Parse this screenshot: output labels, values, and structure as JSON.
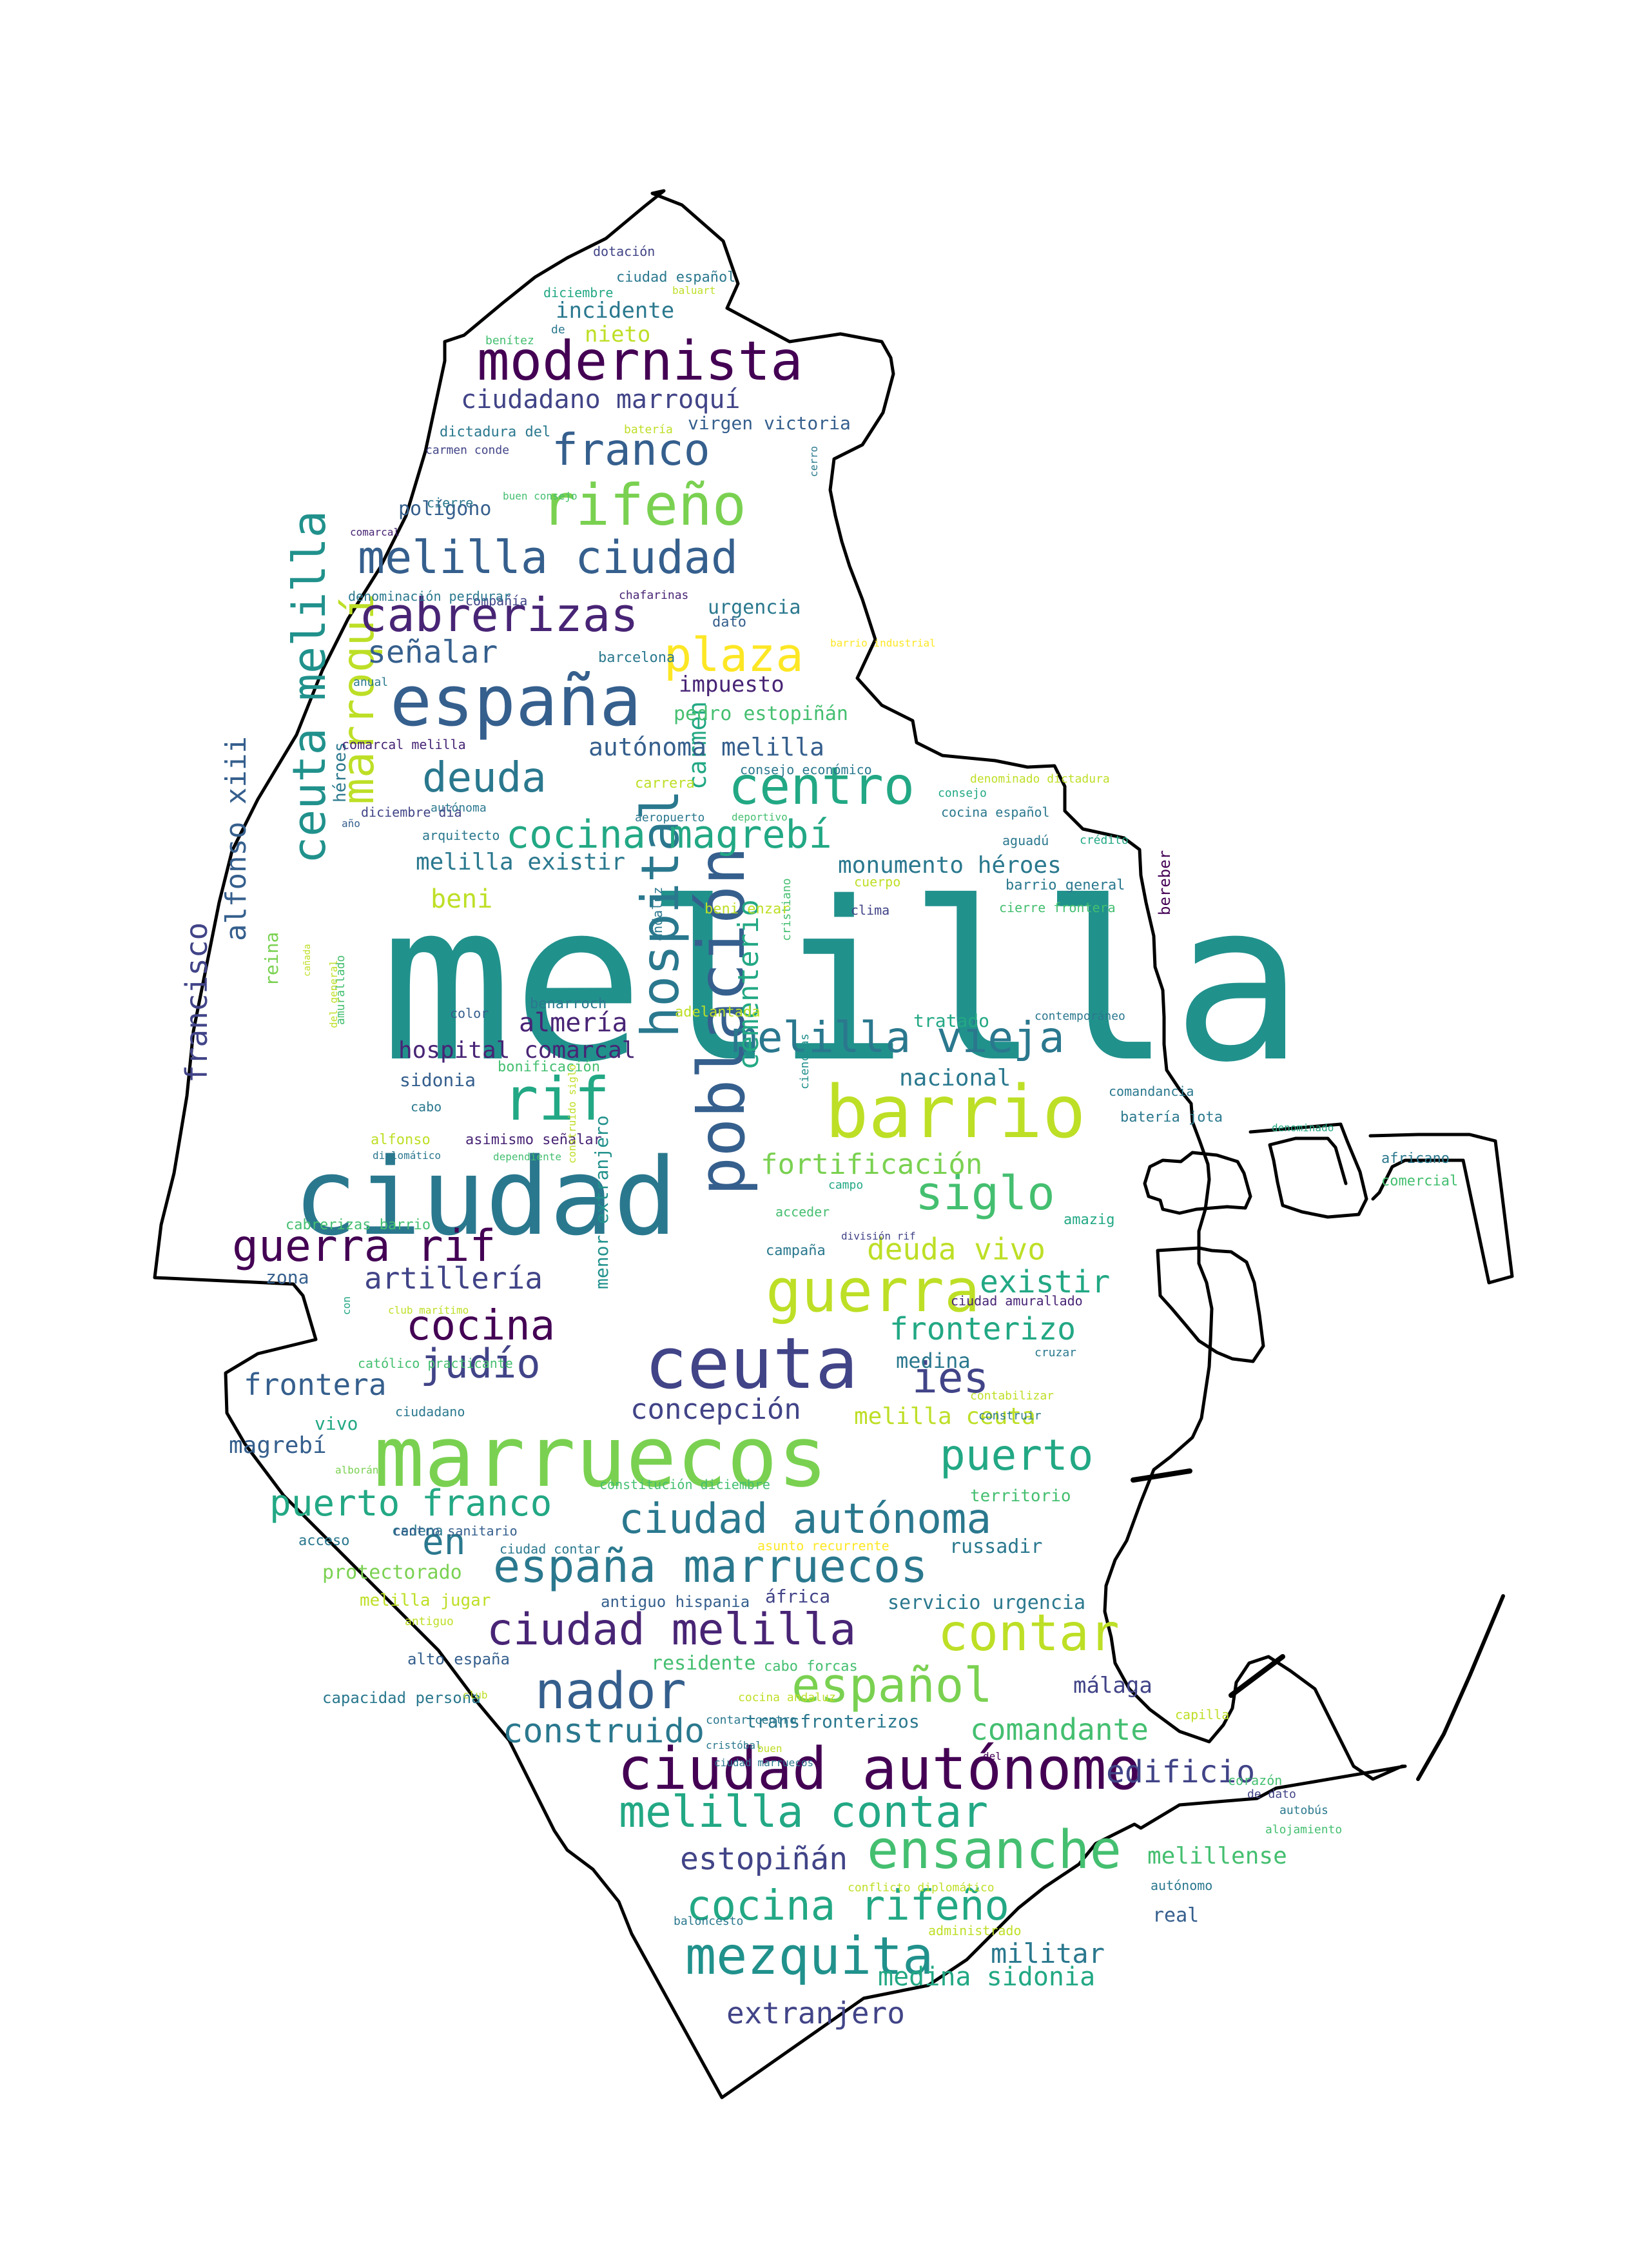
{
  "cloud": {
    "palette": [
      "#440154",
      "#482475",
      "#414487",
      "#355f8d",
      "#2a788e",
      "#21918c",
      "#22a884",
      "#44bf70",
      "#7ad151",
      "#bddf26",
      "#fde725"
    ],
    "words": [
      {
        "t": "melilla",
        "c": "#21918c"
      },
      {
        "t": "ciudad",
        "c": "#2a788e"
      },
      {
        "t": "marruecos",
        "c": "#7ad151"
      },
      {
        "t": "ceuta",
        "c": "#414487"
      },
      {
        "t": "barrio",
        "c": "#bddf26"
      },
      {
        "t": "españa",
        "c": "#355f8d"
      },
      {
        "t": "ciudad autónomo",
        "c": "#440154"
      },
      {
        "t": "población",
        "c": "#355f8d"
      },
      {
        "t": "hospital",
        "c": "#2a788e"
      },
      {
        "t": "guerra",
        "c": "#bddf26"
      },
      {
        "t": "rif",
        "c": "#22a884"
      },
      {
        "t": "marroquí",
        "c": "#bddf26"
      },
      {
        "t": "ceuta melilla",
        "c": "#21918c"
      },
      {
        "t": "rifeño",
        "c": "#7ad151"
      },
      {
        "t": "modernista",
        "c": "#440154"
      },
      {
        "t": "melilla ciudad",
        "c": "#355f8d"
      },
      {
        "t": "cabrerizas",
        "c": "#482475"
      },
      {
        "t": "melilla vieja",
        "c": "#2a788e"
      },
      {
        "t": "ensanche",
        "c": "#44bf70"
      },
      {
        "t": "mezquita",
        "c": "#21918c"
      },
      {
        "t": "contar",
        "c": "#bddf26"
      },
      {
        "t": "nador",
        "c": "#355f8d"
      },
      {
        "t": "español",
        "c": "#7ad151"
      },
      {
        "t": "españa marruecos",
        "c": "#2a788e"
      },
      {
        "t": "ciudad melilla",
        "c": "#482475"
      },
      {
        "t": "ciudad autónoma",
        "c": "#2a788e"
      },
      {
        "t": "melilla contar",
        "c": "#22a884"
      },
      {
        "t": "cocina rifeño",
        "c": "#22a884"
      },
      {
        "t": "guerra rif",
        "c": "#440154"
      },
      {
        "t": "siglo",
        "c": "#44bf70"
      },
      {
        "t": "centro",
        "c": "#22a884"
      },
      {
        "t": "plaza",
        "c": "#fde725"
      },
      {
        "t": "franco",
        "c": "#355f8d"
      },
      {
        "t": "cocina magrebí",
        "c": "#22a884"
      },
      {
        "t": "deuda",
        "c": "#2a788e"
      },
      {
        "t": "cocina",
        "c": "#440154"
      },
      {
        "t": "judío",
        "c": "#414487"
      },
      {
        "t": "puerto",
        "c": "#22a884"
      },
      {
        "t": "puerto franco",
        "c": "#22a884"
      },
      {
        "t": "ies",
        "c": "#414487"
      },
      {
        "t": "en",
        "c": "#2a788e"
      },
      {
        "t": "construido",
        "c": "#2a788e"
      },
      {
        "t": "edificio",
        "c": "#414487"
      },
      {
        "t": "comandante",
        "c": "#44bf70"
      },
      {
        "t": "estopiñán",
        "c": "#414487"
      },
      {
        "t": "militar",
        "c": "#2a788e"
      },
      {
        "t": "medina sidonia",
        "c": "#22a884"
      },
      {
        "t": "extranjero",
        "c": "#414487"
      },
      {
        "t": "señalar",
        "c": "#355f8d"
      },
      {
        "t": "cementerio",
        "c": "#22a884"
      },
      {
        "t": "fortificación",
        "c": "#7ad151"
      },
      {
        "t": "deuda vivo",
        "c": "#bddf26"
      },
      {
        "t": "existir",
        "c": "#22a884"
      },
      {
        "t": "fronterizo",
        "c": "#22a884"
      },
      {
        "t": "artillería",
        "c": "#414487"
      },
      {
        "t": "francisco",
        "c": "#414487"
      },
      {
        "t": "alfonso xiii",
        "c": "#355f8d"
      },
      {
        "t": "carmen",
        "c": "#22a884"
      },
      {
        "t": "frontera",
        "c": "#355f8d"
      },
      {
        "t": "concepción",
        "c": "#414487"
      },
      {
        "t": "hospital comarcal",
        "c": "#482475"
      },
      {
        "t": "almería",
        "c": "#482475"
      },
      {
        "t": "nacional",
        "c": "#2a788e"
      },
      {
        "t": "ciudadano marroquí",
        "c": "#414487"
      },
      {
        "t": "autónoma melilla",
        "c": "#355f8d"
      },
      {
        "t": "monumento héroes",
        "c": "#2a788e"
      },
      {
        "t": "melilla existir",
        "c": "#2a788e"
      },
      {
        "t": "beni",
        "c": "#bddf26"
      },
      {
        "t": "magrebí",
        "c": "#355f8d"
      },
      {
        "t": "melilla ceuta",
        "c": "#bddf26"
      },
      {
        "t": "medina",
        "c": "#2a788e"
      },
      {
        "t": "málaga",
        "c": "#414487"
      },
      {
        "t": "melillense",
        "c": "#44bf70"
      },
      {
        "t": "real",
        "c": "#355f8d"
      },
      {
        "t": "impuesto",
        "c": "#482475"
      },
      {
        "t": "pedro estopiñán",
        "c": "#44bf70"
      },
      {
        "t": "incidente",
        "c": "#2a788e"
      },
      {
        "t": "nieto",
        "c": "#bddf26"
      },
      {
        "t": "polígono",
        "c": "#355f8d"
      },
      {
        "t": "urgencia",
        "c": "#2a788e"
      },
      {
        "t": "protectorado",
        "c": "#7ad151"
      },
      {
        "t": "servicio urgencia",
        "c": "#2a788e"
      },
      {
        "t": "russadir",
        "c": "#2a788e"
      },
      {
        "t": "áfrica",
        "c": "#414487"
      },
      {
        "t": "residente",
        "c": "#44bf70"
      },
      {
        "t": "transfronterizos",
        "c": "#2a788e"
      },
      {
        "t": "tratado",
        "c": "#22a884"
      },
      {
        "t": "sidonia",
        "c": "#355f8d"
      },
      {
        "t": "zona",
        "c": "#355f8d"
      },
      {
        "t": "vivo",
        "c": "#22a884"
      },
      {
        "t": "reina",
        "c": "#7ad151"
      },
      {
        "t": "menor extranjero",
        "c": "#21918c"
      },
      {
        "t": "virgen victoria",
        "c": "#355f8d"
      },
      {
        "t": "héroes",
        "c": "#2a788e"
      },
      {
        "t": "melilla jugar",
        "c": "#bddf26"
      },
      {
        "t": "antiguo hispania",
        "c": "#355f8d"
      },
      {
        "t": "cabo forcas",
        "c": "#44bf70"
      },
      {
        "t": "alto españa",
        "c": "#355f8d"
      },
      {
        "t": "capacidad persona",
        "c": "#2a788e"
      },
      {
        "t": "cadena",
        "c": "#2a788e"
      },
      {
        "t": "acceso",
        "c": "#2a788e"
      },
      {
        "t": "centro sanitario",
        "c": "#355f8d"
      },
      {
        "t": "ciudad contar",
        "c": "#2a788e"
      },
      {
        "t": "asunto recurrente",
        "c": "#fde725"
      },
      {
        "t": "territorio",
        "c": "#44bf70"
      },
      {
        "t": "constitución diciembre",
        "c": "#44bf70"
      },
      {
        "t": "contabilizar",
        "c": "#bddf26"
      },
      {
        "t": "construir",
        "c": "#2a788e"
      },
      {
        "t": "cruzar",
        "c": "#2a788e"
      },
      {
        "t": "ciudad amurallado",
        "c": "#482475"
      },
      {
        "t": "amazig",
        "c": "#22a884"
      },
      {
        "t": "campaña",
        "c": "#2a788e"
      },
      {
        "t": "acceder",
        "c": "#44bf70"
      },
      {
        "t": "campo",
        "c": "#22a884"
      },
      {
        "t": "ciencias",
        "c": "#21918c"
      },
      {
        "t": "bonificación",
        "c": "#44bf70"
      },
      {
        "t": "adelantada",
        "c": "#bddf26"
      },
      {
        "t": "asimismo señalar",
        "c": "#482475"
      },
      {
        "t": "alfonso",
        "c": "#bddf26"
      },
      {
        "t": "diplomático",
        "c": "#2a788e"
      },
      {
        "t": "dependiente",
        "c": "#44bf70"
      },
      {
        "t": "cabrerizas barrio",
        "c": "#44bf70"
      },
      {
        "t": "cabo",
        "c": "#2a788e"
      },
      {
        "t": "color",
        "c": "#355f8d"
      },
      {
        "t": "amurallado",
        "c": "#44bf70"
      },
      {
        "t": "del general",
        "c": "#bddf26"
      },
      {
        "t": "cañada",
        "c": "#bddf26"
      },
      {
        "t": "benarroch",
        "c": "#2a788e"
      },
      {
        "t": "andaluz",
        "c": "#2a788e"
      },
      {
        "t": "cristiano",
        "c": "#44bf70"
      },
      {
        "t": "clima",
        "c": "#414487"
      },
      {
        "t": "cierre frontera",
        "c": "#44bf70"
      },
      {
        "t": "barrio general",
        "c": "#2a788e"
      },
      {
        "t": "bereber",
        "c": "#440154"
      },
      {
        "t": "contemporáneo",
        "c": "#2a788e"
      },
      {
        "t": "comandancia",
        "c": "#2a788e"
      },
      {
        "t": "batería jota",
        "c": "#2a788e"
      },
      {
        "t": "denominado",
        "c": "#22a884"
      },
      {
        "t": "africano",
        "c": "#2a788e"
      },
      {
        "t": "comercial",
        "c": "#44bf70"
      },
      {
        "t": "beni enzar",
        "c": "#bddf26"
      },
      {
        "t": "cuerpo",
        "c": "#bddf26"
      },
      {
        "t": "crédito",
        "c": "#22a884"
      },
      {
        "t": "aguadú",
        "c": "#2a788e"
      },
      {
        "t": "cocina español",
        "c": "#2a788e"
      },
      {
        "t": "consejo",
        "c": "#22a884"
      },
      {
        "t": "denominado dictadura",
        "c": "#bddf26"
      },
      {
        "t": "deportivo",
        "c": "#44bf70"
      },
      {
        "t": "aeropuerto",
        "c": "#2a788e"
      },
      {
        "t": "carrera",
        "c": "#bddf26"
      },
      {
        "t": "consejo económico",
        "c": "#2a788e"
      },
      {
        "t": "autónoma",
        "c": "#2a788e"
      },
      {
        "t": "diciembre día",
        "c": "#414487"
      },
      {
        "t": "año",
        "c": "#355f8d"
      },
      {
        "t": "arquitecto",
        "c": "#2a788e"
      },
      {
        "t": "comarcal melilla",
        "c": "#482475"
      },
      {
        "t": "anual",
        "c": "#2a788e"
      },
      {
        "t": "barcelona",
        "c": "#2a788e"
      },
      {
        "t": "dato",
        "c": "#355f8d"
      },
      {
        "t": "barrio industrial",
        "c": "#fde725"
      },
      {
        "t": "chafarinas",
        "c": "#482475"
      },
      {
        "t": "compañía",
        "c": "#414487"
      },
      {
        "t": "denominación perdurar",
        "c": "#2a788e"
      },
      {
        "t": "comarcal",
        "c": "#482475"
      },
      {
        "t": "buen consejo",
        "c": "#44bf70"
      },
      {
        "t": "cierre",
        "c": "#2a788e"
      },
      {
        "t": "carmen conde",
        "c": "#414487"
      },
      {
        "t": "dictadura del",
        "c": "#2a788e"
      },
      {
        "t": "batería",
        "c": "#bddf26"
      },
      {
        "t": "cerro",
        "c": "#2a788e"
      },
      {
        "t": "de",
        "c": "#2a788e"
      },
      {
        "t": "benítez",
        "c": "#44bf70"
      },
      {
        "t": "diciembre",
        "c": "#22a884"
      },
      {
        "t": "baluart",
        "c": "#bddf26"
      },
      {
        "t": "ciudad español",
        "c": "#2a788e"
      },
      {
        "t": "dotación",
        "c": "#414487"
      },
      {
        "t": "división rif",
        "c": "#414487"
      },
      {
        "t": "construido siglo",
        "c": "#bddf26"
      },
      {
        "t": "club marítimo",
        "c": "#bddf26"
      },
      {
        "t": "con",
        "c": "#22a884"
      },
      {
        "t": "católico practicante",
        "c": "#44bf70"
      },
      {
        "t": "ciudadano",
        "c": "#2a788e"
      },
      {
        "t": "alborán",
        "c": "#7ad151"
      },
      {
        "t": "antiguo",
        "c": "#bddf26"
      },
      {
        "t": "club",
        "c": "#bddf26"
      },
      {
        "t": "cocina andaluz",
        "c": "#bddf26"
      },
      {
        "t": "contar centro",
        "c": "#2a788e"
      },
      {
        "t": "cristóbal",
        "c": "#2a788e"
      },
      {
        "t": "buen",
        "c": "#bddf26"
      },
      {
        "t": "ciudad marruecos",
        "c": "#2a788e"
      },
      {
        "t": "del",
        "c": "#440154"
      },
      {
        "t": "capilla",
        "c": "#bddf26"
      },
      {
        "t": "corazón",
        "c": "#44bf70"
      },
      {
        "t": "de dato",
        "c": "#414487"
      },
      {
        "t": "autobús",
        "c": "#2a788e"
      },
      {
        "t": "alojamiento",
        "c": "#44bf70"
      },
      {
        "t": "autónomo",
        "c": "#2a788e"
      },
      {
        "t": "conflicto diplomático",
        "c": "#bddf26"
      },
      {
        "t": "baloncesto",
        "c": "#2a788e"
      },
      {
        "t": "administrado",
        "c": "#bddf26"
      }
    ]
  }
}
